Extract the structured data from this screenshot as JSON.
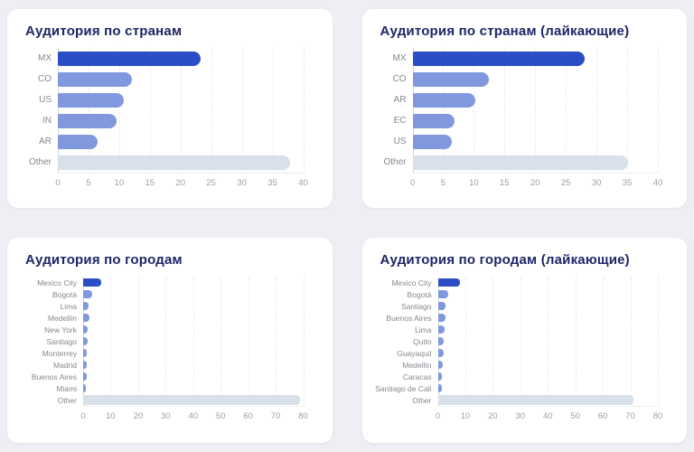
{
  "colors": {
    "background": "#edeff4",
    "card": "#ffffff",
    "title_text": "#1e2566",
    "category_label": "#85888f",
    "tick_label": "#9aa0a8",
    "bar_primary": "#2b4ec6",
    "bar_secondary": "#8099de",
    "bar_other": "#d8e0e9"
  },
  "chart_data": [
    {
      "type": "bar",
      "orientation": "horizontal",
      "title": "Аудитория по странам",
      "categories": [
        "MX",
        "CO",
        "US",
        "IN",
        "AR",
        "Other"
      ],
      "values": [
        23.3,
        12.1,
        10.8,
        9.6,
        6.5,
        37.8
      ],
      "xlim": [
        0,
        40
      ],
      "xticks": [
        0,
        5,
        10,
        15,
        20,
        25,
        30,
        35,
        40
      ],
      "xlabel": "",
      "ylabel": "",
      "grid": "vertical-dotted",
      "legend": "none"
    },
    {
      "type": "bar",
      "orientation": "horizontal",
      "title": "Аудитория по странам (лайкающие)",
      "categories": [
        "MX",
        "CO",
        "AR",
        "EC",
        "US",
        "Other"
      ],
      "values": [
        28.1,
        12.5,
        10.3,
        6.9,
        6.4,
        35.2
      ],
      "xlim": [
        0,
        40
      ],
      "xticks": [
        0,
        5,
        10,
        15,
        20,
        25,
        30,
        35,
        40
      ],
      "xlabel": "",
      "ylabel": "",
      "grid": "vertical-dotted",
      "legend": "none"
    },
    {
      "type": "bar",
      "orientation": "horizontal",
      "title": "Аудитория по городам",
      "categories": [
        "Mexico City",
        "Bogotá",
        "Lima",
        "Medellín",
        "New York",
        "Santiago",
        "Monterrey",
        "Madrid",
        "Buenos Aires",
        "Miami",
        "Other"
      ],
      "values": [
        6.5,
        3.2,
        2.1,
        2.2,
        1.6,
        1.5,
        1.4,
        1.3,
        1.2,
        1.1,
        78.7
      ],
      "xlim": [
        0,
        80
      ],
      "xticks": [
        0,
        10,
        20,
        30,
        40,
        50,
        60,
        70,
        80
      ],
      "xlabel": "",
      "ylabel": "",
      "grid": "vertical-dotted",
      "legend": "none"
    },
    {
      "type": "bar",
      "orientation": "horizontal",
      "title": "Аудитория по городам (лайкающие)",
      "categories": [
        "Mexico City",
        "Bogotá",
        "Santiago",
        "Buenos Aires",
        "Lima",
        "Quito",
        "Guayaquil",
        "Medellín",
        "Caracas",
        "Santiago de Cali",
        "Other"
      ],
      "values": [
        8.1,
        3.9,
        2.8,
        2.7,
        2.3,
        2.2,
        2.1,
        1.7,
        1.6,
        1.5,
        71.2
      ],
      "xlim": [
        0,
        80
      ],
      "xticks": [
        0,
        10,
        20,
        30,
        40,
        50,
        60,
        70,
        80
      ],
      "xlabel": "",
      "ylabel": "",
      "grid": "vertical-dotted",
      "legend": "none"
    }
  ]
}
